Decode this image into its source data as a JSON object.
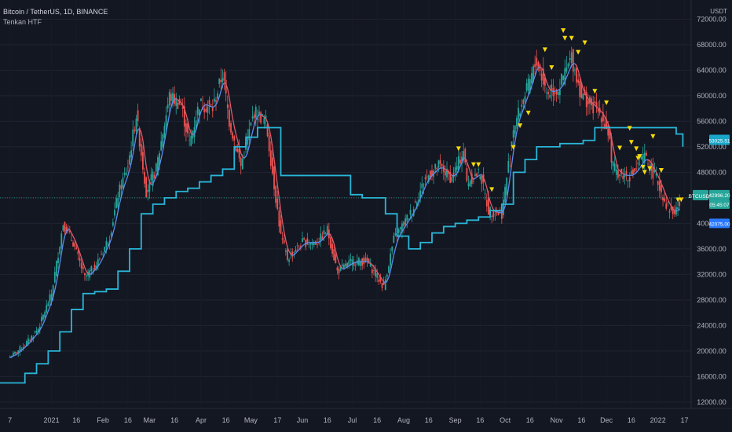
{
  "header": {
    "symbol_title": "Bitcoin / TetherUS, 1D, BINANCE",
    "study_title": "Tenkan HTF",
    "currency": "USDT"
  },
  "colors": {
    "background": "#131722",
    "grid": "#1f2430",
    "up": "#26a69a",
    "down": "#ef5350",
    "htf_line": "#29b6d8",
    "tenkan_up": "#26a69a",
    "tenkan_down": "#e05a6a",
    "tenkan_neutral": "#5b8def",
    "signal": "#f5d90a"
  },
  "badges": [
    {
      "label": "53025.51",
      "bg": "#1aa6c8"
    },
    {
      "label": "BTCUSDT",
      "bg": "#26a69a"
    },
    {
      "label": "42996.20",
      "bg": "#26a69a"
    },
    {
      "label": "05:45:07",
      "bg": "#26a69a"
    },
    {
      "label": "42075.00",
      "bg": "#2979ff"
    }
  ],
  "chart_data": {
    "type": "candlestick",
    "ylim": [
      11000,
      75000
    ],
    "y_ticks": [
      "72000.00",
      "68000.00",
      "64000.00",
      "60000.00",
      "56000.00",
      "52000.00",
      "48000.00",
      "44000.00",
      "40000.00",
      "36000.00",
      "32000.00",
      "28000.00",
      "24000.00",
      "20000.00",
      "16000.00",
      "12000.00"
    ],
    "x_ticks": [
      "7",
      "2021",
      "16",
      "Feb",
      "16",
      "Mar",
      "16",
      "Apr",
      "16",
      "May",
      "17",
      "Jun",
      "16",
      "Jul",
      "16",
      "Aug",
      "16",
      "Sep",
      "16",
      "Oct",
      "16",
      "Nov",
      "16",
      "Dec",
      "16",
      "2022",
      "17"
    ],
    "close_path": [
      [
        "2020-12-07",
        19000
      ],
      [
        "2020-12-16",
        21000
      ],
      [
        "2020-12-24",
        23500
      ],
      [
        "2021-01-01",
        29000
      ],
      [
        "2021-01-08",
        40000
      ],
      [
        "2021-01-14",
        37000
      ],
      [
        "2021-01-21",
        31500
      ],
      [
        "2021-01-28",
        33500
      ],
      [
        "2021-02-05",
        38000
      ],
      [
        "2021-02-10",
        44500
      ],
      [
        "2021-02-16",
        49000
      ],
      [
        "2021-02-21",
        57000
      ],
      [
        "2021-02-27",
        45000
      ],
      [
        "2021-03-05",
        48500
      ],
      [
        "2021-03-13",
        60000
      ],
      [
        "2021-03-20",
        58500
      ],
      [
        "2021-03-25",
        52500
      ],
      [
        "2021-03-31",
        58800
      ],
      [
        "2021-04-08",
        58000
      ],
      [
        "2021-04-14",
        63500
      ],
      [
        "2021-04-18",
        56000
      ],
      [
        "2021-04-25",
        49000
      ],
      [
        "2021-05-03",
        57500
      ],
      [
        "2021-05-10",
        56000
      ],
      [
        "2021-05-13",
        50000
      ],
      [
        "2021-05-19",
        38000
      ],
      [
        "2021-05-23",
        34500
      ],
      [
        "2021-06-01",
        37000
      ],
      [
        "2021-06-10",
        37000
      ],
      [
        "2021-06-16",
        39000
      ],
      [
        "2021-06-22",
        32500
      ],
      [
        "2021-07-01",
        34000
      ],
      [
        "2021-07-10",
        34000
      ],
      [
        "2021-07-20",
        30000
      ],
      [
        "2021-07-26",
        37500
      ],
      [
        "2021-08-06",
        42000
      ],
      [
        "2021-08-14",
        47000
      ],
      [
        "2021-08-22",
        49000
      ],
      [
        "2021-08-30",
        47000
      ],
      [
        "2021-09-06",
        51500
      ],
      [
        "2021-09-08",
        46500
      ],
      [
        "2021-09-16",
        48000
      ],
      [
        "2021-09-21",
        42000
      ],
      [
        "2021-09-29",
        41500
      ],
      [
        "2021-10-06",
        55000
      ],
      [
        "2021-10-15",
        61500
      ],
      [
        "2021-10-20",
        65500
      ],
      [
        "2021-10-26",
        60500
      ],
      [
        "2021-11-02",
        61000
      ],
      [
        "2021-11-10",
        66000
      ],
      [
        "2021-11-16",
        60000
      ],
      [
        "2021-11-20",
        59000
      ],
      [
        "2021-11-28",
        57000
      ],
      [
        "2021-12-03",
        53500
      ],
      [
        "2021-12-04",
        49000
      ],
      [
        "2021-12-10",
        47500
      ],
      [
        "2021-12-16",
        47500
      ],
      [
        "2021-12-24",
        50500
      ],
      [
        "2021-12-31",
        47000
      ],
      [
        "2022-01-06",
        43000
      ],
      [
        "2022-01-10",
        41500
      ],
      [
        "2022-01-14",
        43000
      ]
    ],
    "htf_steps": [
      [
        "2020-12-01",
        15000
      ],
      [
        "2020-12-16",
        16500
      ],
      [
        "2020-12-23",
        18000
      ],
      [
        "2020-12-30",
        20000
      ],
      [
        "2021-01-06",
        23000
      ],
      [
        "2021-01-13",
        26500
      ],
      [
        "2021-01-20",
        29000
      ],
      [
        "2021-01-27",
        29300
      ],
      [
        "2021-02-03",
        29700
      ],
      [
        "2021-02-10",
        32500
      ],
      [
        "2021-02-17",
        36000
      ],
      [
        "2021-02-24",
        41500
      ],
      [
        "2021-03-03",
        43000
      ],
      [
        "2021-03-10",
        44000
      ],
      [
        "2021-03-17",
        45000
      ],
      [
        "2021-03-24",
        45500
      ],
      [
        "2021-03-31",
        46500
      ],
      [
        "2021-04-07",
        47500
      ],
      [
        "2021-04-14",
        48500
      ],
      [
        "2021-04-21",
        52000
      ],
      [
        "2021-04-28",
        53500
      ],
      [
        "2021-05-05",
        55000
      ],
      [
        "2021-05-19",
        47500
      ],
      [
        "2021-06-30",
        44500
      ],
      [
        "2021-07-07",
        44000
      ],
      [
        "2021-07-21",
        41500
      ],
      [
        "2021-07-28",
        38000
      ],
      [
        "2021-08-04",
        36000
      ],
      [
        "2021-08-11",
        37000
      ],
      [
        "2021-08-18",
        38500
      ],
      [
        "2021-08-25",
        39500
      ],
      [
        "2021-09-01",
        40000
      ],
      [
        "2021-09-08",
        40500
      ],
      [
        "2021-09-15",
        41000
      ],
      [
        "2021-09-22",
        42000
      ],
      [
        "2021-09-29",
        43000
      ],
      [
        "2021-10-06",
        48000
      ],
      [
        "2021-10-13",
        50000
      ],
      [
        "2021-10-20",
        52000
      ],
      [
        "2021-11-03",
        52500
      ],
      [
        "2021-11-17",
        53000
      ],
      [
        "2021-11-24",
        55000
      ],
      [
        "2022-01-12",
        54000
      ],
      [
        "2022-01-16",
        52000
      ]
    ],
    "signals": [
      [
        "2021-09-03",
        51700
      ],
      [
        "2021-09-12",
        49200
      ],
      [
        "2021-09-15",
        49200
      ],
      [
        "2021-09-23",
        45300
      ],
      [
        "2021-10-06",
        51900
      ],
      [
        "2021-10-10",
        55300
      ],
      [
        "2021-10-15",
        57300
      ],
      [
        "2021-10-25",
        67200
      ],
      [
        "2021-10-29",
        64400
      ],
      [
        "2021-11-05",
        70200
      ],
      [
        "2021-11-06",
        69000
      ],
      [
        "2021-11-10",
        69000
      ],
      [
        "2021-11-14",
        66800
      ],
      [
        "2021-11-18",
        68300
      ],
      [
        "2021-11-24",
        60700
      ],
      [
        "2021-12-01",
        58900
      ],
      [
        "2021-12-09",
        51800
      ],
      [
        "2021-12-15",
        54900
      ],
      [
        "2021-12-16",
        52700
      ],
      [
        "2021-12-19",
        51700
      ],
      [
        "2021-12-20",
        50200
      ],
      [
        "2021-12-21",
        50500
      ],
      [
        "2021-12-23",
        48800
      ],
      [
        "2021-12-24",
        48000
      ],
      [
        "2021-12-27",
        48600
      ],
      [
        "2021-12-29",
        53600
      ],
      [
        "2022-01-03",
        48300
      ],
      [
        "2022-01-13",
        43700
      ],
      [
        "2022-01-15",
        43700
      ]
    ]
  }
}
